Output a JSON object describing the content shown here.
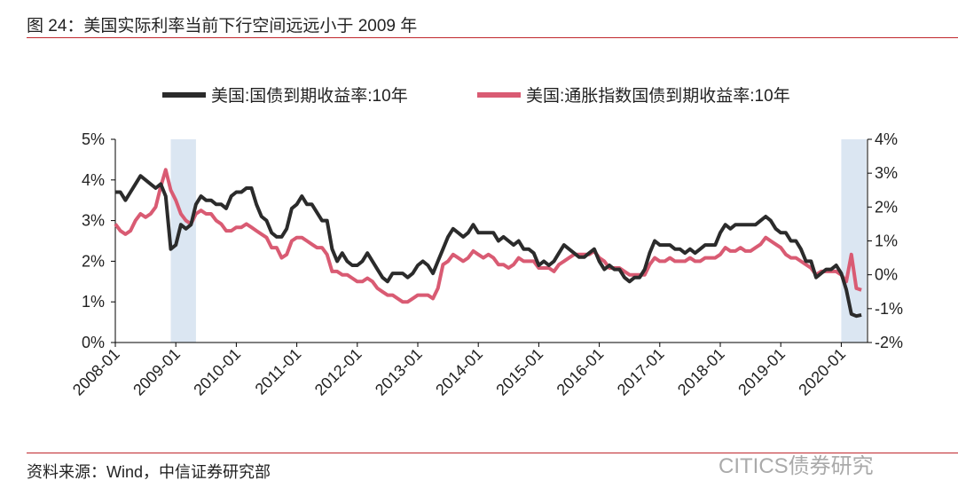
{
  "title": "图 24：美国实际利率当前下行空间远远小于 2009 年",
  "source": "资料来源：Wind，中信证券研究部",
  "watermark": "CITICS债券研究",
  "colors": {
    "nominal": "#2b2b2b",
    "tips": "#d95b73",
    "shade": "#dbe6f2",
    "rule": "#c0282d"
  },
  "chart_data": {
    "type": "line",
    "start_month": "2008-01",
    "x_tick_labels": [
      "2008-01",
      "2009-01",
      "2010-01",
      "2011-01",
      "2012-01",
      "2013-01",
      "2014-01",
      "2015-01",
      "2016-01",
      "2017-01",
      "2018-01",
      "2019-01",
      "2020-01"
    ],
    "y_left": {
      "ticks": [
        "0%",
        "1%",
        "2%",
        "3%",
        "4%",
        "5%"
      ],
      "range": [
        0,
        5
      ]
    },
    "y_right": {
      "ticks": [
        "-2%",
        "-1%",
        "0%",
        "1%",
        "2%",
        "3%",
        "4%"
      ],
      "range": [
        -2,
        4
      ]
    },
    "shaded_periods": [
      [
        "2008-12",
        "2009-04"
      ],
      [
        "2020-01",
        "2020-05"
      ]
    ],
    "series": [
      {
        "name": "美国:国债到期收益率:10年",
        "axis": "left",
        "values": [
          3.7,
          3.7,
          3.5,
          3.7,
          3.9,
          4.1,
          4.0,
          3.9,
          3.8,
          3.9,
          3.6,
          2.3,
          2.4,
          2.9,
          2.8,
          2.9,
          3.4,
          3.6,
          3.5,
          3.5,
          3.4,
          3.4,
          3.3,
          3.6,
          3.7,
          3.7,
          3.8,
          3.8,
          3.4,
          3.1,
          3.0,
          2.7,
          2.6,
          2.6,
          2.8,
          3.3,
          3.4,
          3.6,
          3.4,
          3.4,
          3.2,
          3.0,
          3.0,
          2.3,
          2.0,
          2.2,
          2.0,
          1.9,
          1.9,
          2.0,
          2.2,
          2.0,
          1.8,
          1.6,
          1.5,
          1.7,
          1.7,
          1.7,
          1.6,
          1.7,
          1.9,
          2.0,
          1.9,
          1.7,
          2.0,
          2.3,
          2.6,
          2.8,
          2.7,
          2.6,
          2.7,
          2.9,
          2.7,
          2.7,
          2.7,
          2.7,
          2.5,
          2.6,
          2.5,
          2.4,
          2.5,
          2.3,
          2.3,
          2.2,
          1.9,
          2.0,
          1.9,
          2.0,
          2.2,
          2.4,
          2.3,
          2.2,
          2.1,
          2.1,
          2.2,
          2.3,
          2.0,
          1.8,
          1.9,
          1.8,
          1.8,
          1.6,
          1.5,
          1.6,
          1.6,
          1.8,
          2.2,
          2.5,
          2.4,
          2.4,
          2.4,
          2.3,
          2.3,
          2.2,
          2.3,
          2.2,
          2.3,
          2.4,
          2.4,
          2.4,
          2.7,
          2.9,
          2.8,
          2.9,
          2.9,
          2.9,
          2.9,
          2.9,
          3.0,
          3.1,
          3.0,
          2.8,
          2.7,
          2.7,
          2.5,
          2.5,
          2.3,
          2.0,
          2.0,
          1.6,
          1.7,
          1.8,
          1.8,
          1.9,
          1.7,
          1.3,
          0.7,
          0.65,
          0.68
        ]
      },
      {
        "name": "美国:通胀指数国债到期收益率:10年",
        "axis": "right",
        "values": [
          1.5,
          1.3,
          1.2,
          1.3,
          1.6,
          1.8,
          1.7,
          1.8,
          2.0,
          2.6,
          3.1,
          2.5,
          2.2,
          1.8,
          1.6,
          1.5,
          1.8,
          1.9,
          1.8,
          1.8,
          1.6,
          1.5,
          1.3,
          1.3,
          1.4,
          1.4,
          1.5,
          1.4,
          1.3,
          1.2,
          1.1,
          0.8,
          0.8,
          0.5,
          0.6,
          1.0,
          1.1,
          1.1,
          1.0,
          0.9,
          0.8,
          0.8,
          0.6,
          0.1,
          0.1,
          0.0,
          0.0,
          -0.1,
          -0.2,
          -0.2,
          -0.1,
          -0.2,
          -0.4,
          -0.5,
          -0.6,
          -0.6,
          -0.7,
          -0.8,
          -0.8,
          -0.7,
          -0.6,
          -0.6,
          -0.6,
          -0.7,
          -0.4,
          0.3,
          0.4,
          0.6,
          0.5,
          0.4,
          0.5,
          0.7,
          0.6,
          0.5,
          0.6,
          0.5,
          0.3,
          0.3,
          0.2,
          0.3,
          0.5,
          0.4,
          0.4,
          0.4,
          0.2,
          0.2,
          0.2,
          0.1,
          0.3,
          0.4,
          0.5,
          0.6,
          0.6,
          0.6,
          0.6,
          0.7,
          0.5,
          0.4,
          0.2,
          0.2,
          0.2,
          0.1,
          0.0,
          0.0,
          0.0,
          0.0,
          0.3,
          0.5,
          0.4,
          0.4,
          0.5,
          0.4,
          0.4,
          0.4,
          0.5,
          0.4,
          0.4,
          0.5,
          0.5,
          0.5,
          0.6,
          0.8,
          0.7,
          0.7,
          0.8,
          0.7,
          0.7,
          0.8,
          0.9,
          1.1,
          1.0,
          0.9,
          0.8,
          0.6,
          0.5,
          0.5,
          0.4,
          0.3,
          0.2,
          0.0,
          0.1,
          0.1,
          0.1,
          0.1,
          0.0,
          -0.2,
          0.6,
          -0.4,
          -0.45
        ]
      }
    ]
  }
}
